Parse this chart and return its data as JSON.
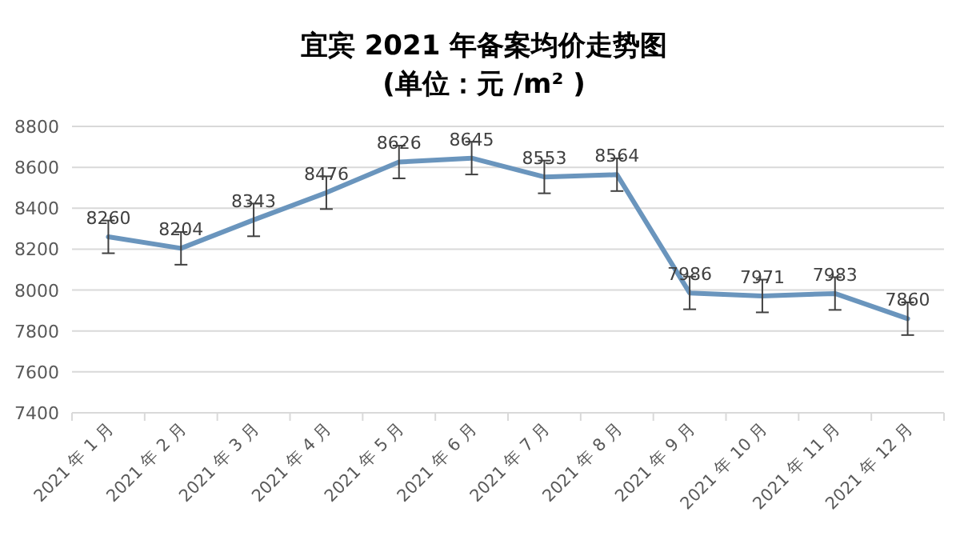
{
  "chart_data": {
    "type": "line",
    "title": "宜宾 2021 年备案均价走势图",
    "subtitle": "(单位：元 /m² )",
    "categories": [
      "2021 年 1 月",
      "2021 年 2 月",
      "2021 年 3 月",
      "2021 年 4 月",
      "2021 年 5 月",
      "2021 年 6 月",
      "2021 年 7 月",
      "2021 年 8 月",
      "2021 年 9 月",
      "2021 年 10 月",
      "2021 年 11 月",
      "2021 年 12 月"
    ],
    "values": [
      8260,
      8204,
      8343,
      8476,
      8626,
      8645,
      8553,
      8564,
      7986,
      7971,
      7983,
      7860
    ],
    "errors": [
      80,
      80,
      80,
      80,
      80,
      80,
      80,
      80,
      80,
      80,
      80,
      80
    ],
    "color": "#6a95bd",
    "ylim": [
      7400,
      8800
    ],
    "yticks": [
      7400,
      7600,
      7800,
      8000,
      8200,
      8400,
      8600,
      8800
    ],
    "grid": "y",
    "data_labels": true
  }
}
